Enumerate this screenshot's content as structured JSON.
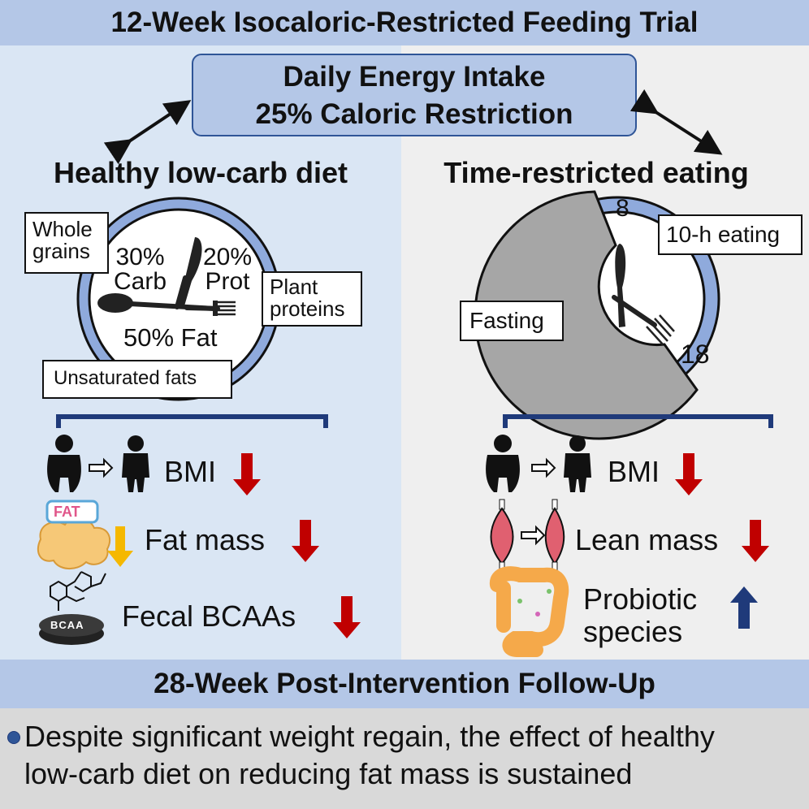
{
  "header": {
    "title": "12-Week Isocaloric-Restricted Feeding Trial"
  },
  "center_box": {
    "line1": "Daily Energy Intake",
    "line2": "25% Caloric Restriction"
  },
  "left": {
    "title": "Healthy low-carb diet",
    "tag_whole_grains": "Whole grains",
    "tag_plant_proteins": "Plant proteins",
    "tag_unsat_fats": "Unsaturated fats",
    "carb_pct": "30%",
    "carb_label": "Carb",
    "prot_pct": "20%",
    "prot_label": "Prot",
    "fat": "50% Fat",
    "out_bmi": "BMI",
    "out_fat_mass": "Fat mass",
    "out_bcaa": "Fecal BCAAs",
    "fat_icon_label": "FAT",
    "bcaa_label": "BCAA"
  },
  "right": {
    "title": "Time-restricted eating",
    "hour_start": "8",
    "hour_end": "18",
    "tag_eating": "10-h eating",
    "tag_fasting": "Fasting",
    "out_bmi": "BMI",
    "out_lean_mass": "Lean mass",
    "out_probiotic_l1": "Probiotic",
    "out_probiotic_l2": "species"
  },
  "footer": {
    "title": "28-Week Post-Intervention Follow-Up",
    "bullet_line1": "Despite significant weight regain, the effect of healthy",
    "bullet_line2": "low-carb diet on reducing fat mass is sustained"
  },
  "colors": {
    "band": "#b4c7e7",
    "left_panel": "#dae6f4",
    "right_panel": "#efefef",
    "down_arrow": "#c00000",
    "up_arrow": "#1f3a7a",
    "bracket": "#1f3a7a"
  }
}
